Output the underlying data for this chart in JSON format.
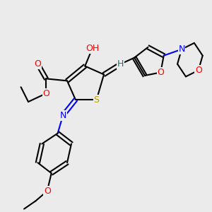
{
  "bg_color": "#ebebeb",
  "figsize": [
    3.0,
    3.0
  ],
  "dpi": 100,
  "lw": 1.5,
  "colors": {
    "black": "#000000",
    "S": "#b8a000",
    "N": "#0000ff",
    "O": "#ff0000",
    "H": "#008080"
  }
}
